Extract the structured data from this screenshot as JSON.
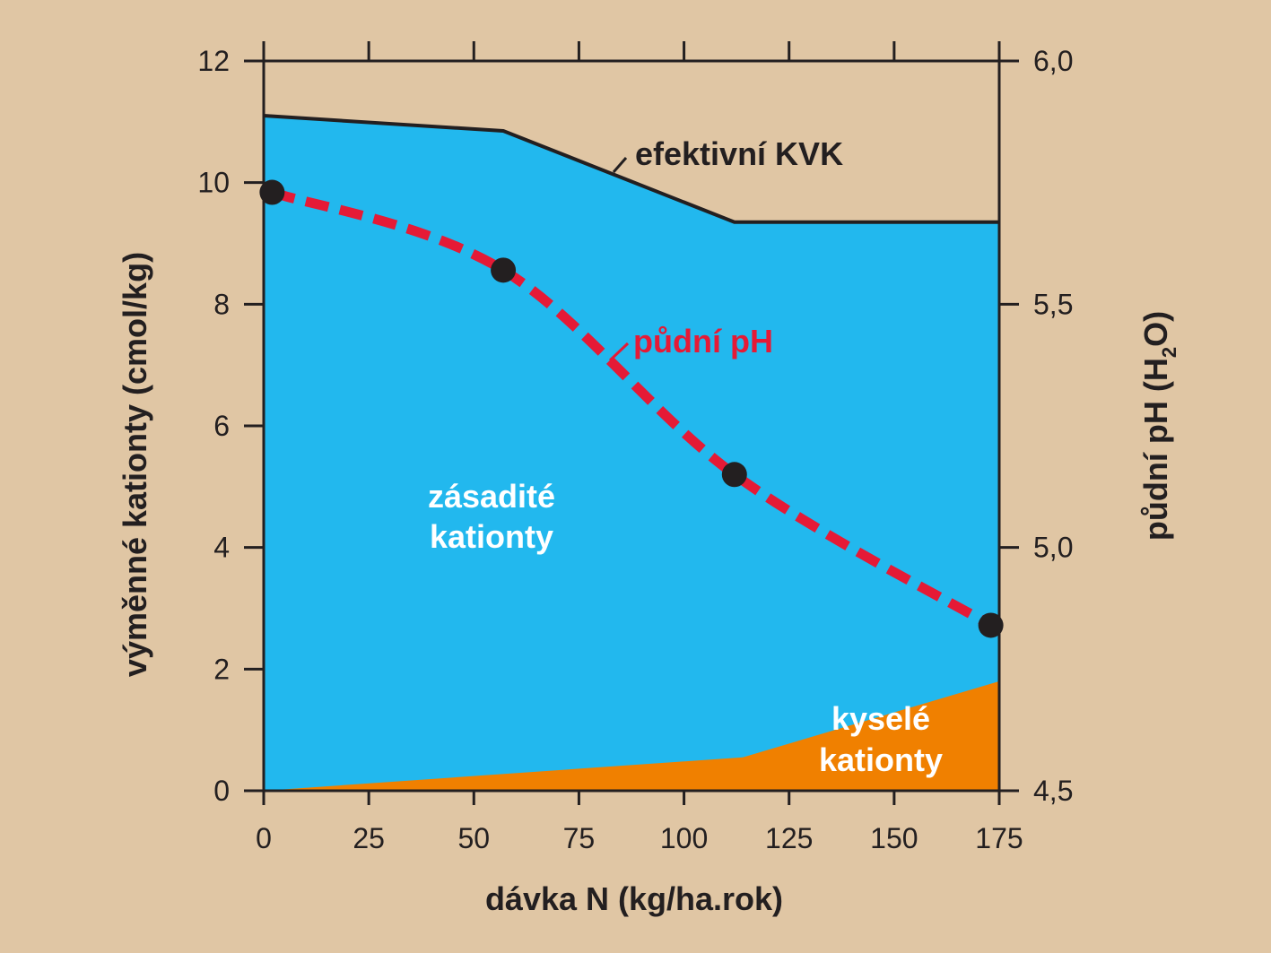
{
  "chart_data": {
    "type": "area",
    "title": "",
    "xlabel": "dávka N (kg/ha.rok)",
    "ylabel_left": "výměnné kationty (cmol/kg)",
    "ylabel_right": {
      "text": "půdní pH (H",
      "sub": "2",
      "tail": "O)"
    },
    "xlim": [
      0,
      175
    ],
    "ylim_left": [
      0,
      12
    ],
    "ylim_right": [
      4.5,
      6.0
    ],
    "x_ticks": [
      0,
      25,
      50,
      75,
      100,
      125,
      150,
      175
    ],
    "x_tick_labels": [
      "0",
      "25",
      "50",
      "75",
      "100",
      "125",
      "150",
      "175"
    ],
    "y_left_ticks": [
      0,
      2,
      4,
      6,
      8,
      10,
      12
    ],
    "y_left_tick_labels": [
      "0",
      "2",
      "4",
      "6",
      "8",
      "10",
      "12"
    ],
    "y_right_ticks": [
      4.5,
      5.0,
      5.5,
      6.0
    ],
    "y_right_tick_labels": [
      "4,5",
      "5,0",
      "5,5",
      "6,0"
    ],
    "grid": false,
    "series": [
      {
        "name": "efektivní KVK",
        "axis": "left",
        "color": "#231f20",
        "x": [
          0,
          57,
          112,
          175
        ],
        "y": [
          11.1,
          10.85,
          9.35,
          9.35
        ]
      },
      {
        "name": "kyselé kationty",
        "axis": "left",
        "color": "#f08000",
        "x": [
          0,
          114,
          175
        ],
        "y": [
          0,
          0.55,
          1.8
        ]
      },
      {
        "name": "půdní pH",
        "axis": "right",
        "color": "#e51a36",
        "x": [
          2,
          57,
          112,
          173
        ],
        "y": [
          5.73,
          5.57,
          5.15,
          4.84
        ]
      }
    ],
    "area_fills": {
      "zasadite": "#22b8ee",
      "kysele": "#f08000"
    },
    "annotations": {
      "kvk_label": "efektivní KVK",
      "ph_label": "půdní pH",
      "zasadite_line1": "zásadité",
      "zasadite_line2": "kationty",
      "kysele_line1": "kyselé",
      "kysele_line2": "kationty"
    }
  }
}
